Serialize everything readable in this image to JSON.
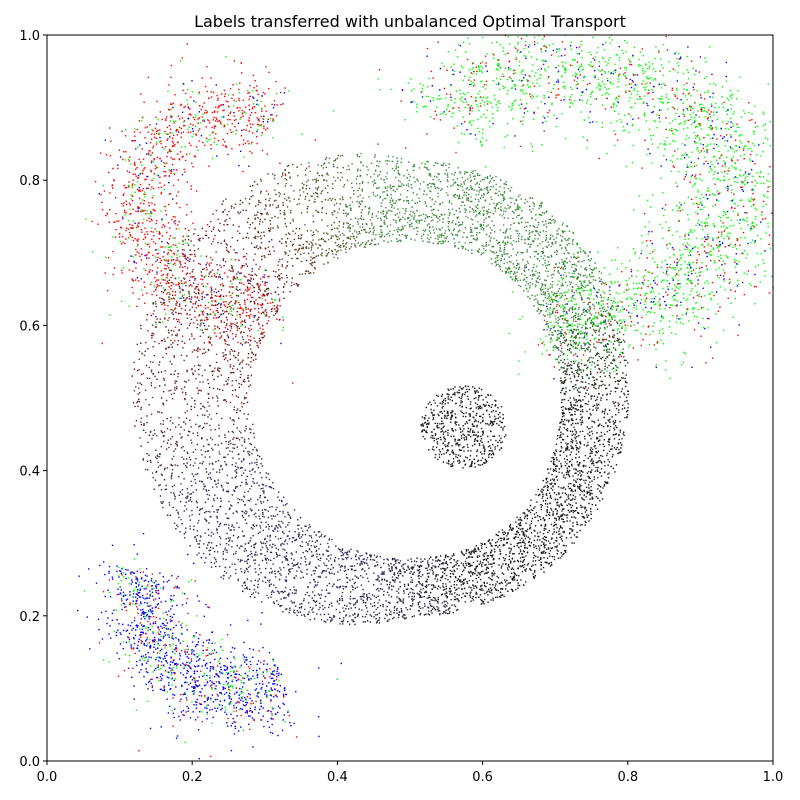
{
  "chart_data": {
    "type": "scatter",
    "title": "Labels transferred with unbalanced Optimal Transport",
    "xlabel": "",
    "ylabel": "",
    "xlim": [
      0,
      1
    ],
    "ylim": [
      0,
      1
    ],
    "grid": false,
    "x_ticks": [
      "0.0",
      "0.2",
      "0.4",
      "0.6",
      "0.8",
      "1.0"
    ],
    "y_ticks": [
      "0.0",
      "0.2",
      "0.4",
      "0.6",
      "0.8",
      "1.0"
    ],
    "colors": {
      "red": "#ff0000",
      "green": "#00ff00",
      "blue": "#0000ff",
      "ring_dark": "#1a1a1a",
      "ring_red": "#6b1f1f",
      "ring_green": "#3d8c3d",
      "ring_blue": "#2e2a5a"
    },
    "series": [
      {
        "label_color": "red",
        "region": "upper-left crescent",
        "cx": 0.17,
        "cy": 0.76,
        "count": 1400,
        "color_mix": {
          "red": 0.72,
          "green": 0.18,
          "blue": 0.1
        }
      },
      {
        "label_color": "green",
        "region": "upper-right arc",
        "cx": 0.74,
        "cy": 0.82,
        "count": 2600,
        "color_mix": {
          "green": 0.7,
          "red": 0.18,
          "blue": 0.12
        }
      },
      {
        "label_color": "blue",
        "region": "lower-left arc",
        "cx": 0.22,
        "cy": 0.13,
        "count": 1300,
        "color_mix": {
          "blue": 0.68,
          "red": 0.14,
          "green": 0.18
        }
      },
      {
        "label_color": "ring",
        "region": "central ring",
        "center": [
          0.51,
          0.5
        ],
        "inner_radius": 0.235,
        "outer_radius": 0.33,
        "count": 7000
      },
      {
        "label_color": "ring_dark",
        "region": "central blob",
        "center": [
          0.575,
          0.46
        ],
        "radius": 0.06,
        "count": 550
      }
    ]
  }
}
